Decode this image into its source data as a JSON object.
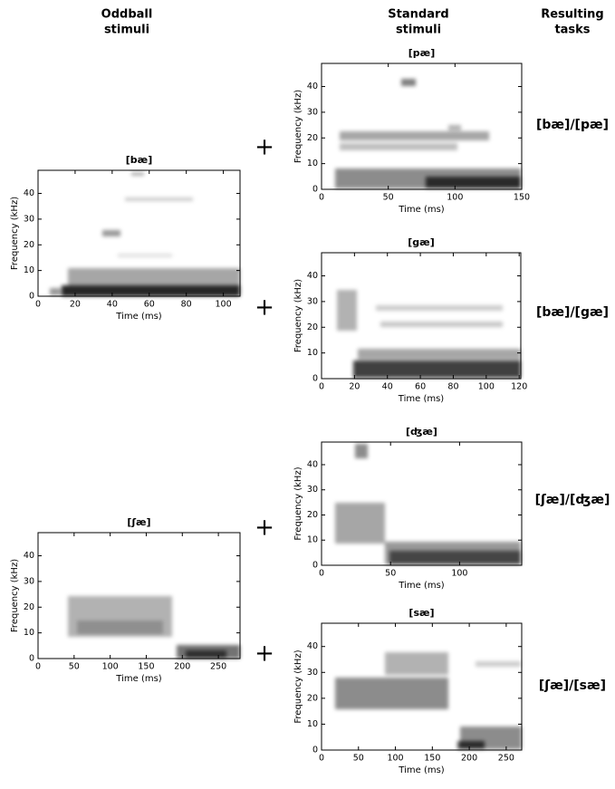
{
  "headers": {
    "oddball": [
      "Oddball",
      "stimuli"
    ],
    "standard": [
      "Standard",
      "stimuli"
    ],
    "tasks": [
      "Resulting",
      "tasks"
    ]
  },
  "tasks": [
    "[bæ]/[pæ]",
    "[bæ]/[gæ]",
    "[ʃæ]/[ʤæ]",
    "[ʃæ]/[sæ]"
  ],
  "operators": [
    "+",
    "+",
    "+",
    "+"
  ],
  "chart_data": [
    {
      "type": "spectrogram",
      "title": "[bæ]",
      "xlabel": "Time (ms)",
      "ylabel": "Frequency (kHz)",
      "xlim": [
        0,
        109
      ],
      "ylim": [
        0,
        49
      ],
      "xticks": [
        0,
        20,
        40,
        60,
        80,
        100
      ],
      "yticks": [
        0,
        10,
        20,
        30,
        40
      ]
    },
    {
      "type": "spectrogram",
      "title": "[pæ]",
      "xlabel": "Time (ms)",
      "ylabel": "Frequency (kHz)",
      "xlim": [
        0,
        150
      ],
      "ylim": [
        0,
        49
      ],
      "xticks": [
        0,
        50,
        100,
        150
      ],
      "yticks": [
        0,
        10,
        20,
        30,
        40
      ]
    },
    {
      "type": "spectrogram",
      "title": "[gæ]",
      "xlabel": "Time (ms)",
      "ylabel": "Frequency (kHz)",
      "xlim": [
        0,
        121
      ],
      "ylim": [
        0,
        49
      ],
      "xticks": [
        0,
        20,
        40,
        60,
        80,
        100,
        120
      ],
      "yticks": [
        0,
        10,
        20,
        30,
        40
      ]
    },
    {
      "type": "spectrogram",
      "title": "[ʤæ]",
      "xlabel": "Time (ms)",
      "ylabel": "Frequency (kHz)",
      "xlim": [
        0,
        145
      ],
      "ylim": [
        0,
        49
      ],
      "xticks": [
        0,
        50,
        100
      ],
      "yticks": [
        0,
        10,
        20,
        30,
        40
      ]
    },
    {
      "type": "spectrogram",
      "title": "[ʃæ]",
      "xlabel": "Time (ms)",
      "ylabel": "Frequency (kHz)",
      "xlim": [
        0,
        280
      ],
      "ylim": [
        0,
        49
      ],
      "xticks": [
        0,
        50,
        100,
        150,
        200,
        250
      ],
      "yticks": [
        0,
        10,
        20,
        30,
        40
      ]
    },
    {
      "type": "spectrogram",
      "title": "[sæ]",
      "xlabel": "Time (ms)",
      "ylabel": "Frequency (kHz)",
      "xlim": [
        0,
        271
      ],
      "ylim": [
        0,
        49
      ],
      "xticks": [
        0,
        50,
        100,
        150,
        200,
        250
      ],
      "yticks": [
        0,
        10,
        20,
        30,
        40
      ]
    }
  ]
}
